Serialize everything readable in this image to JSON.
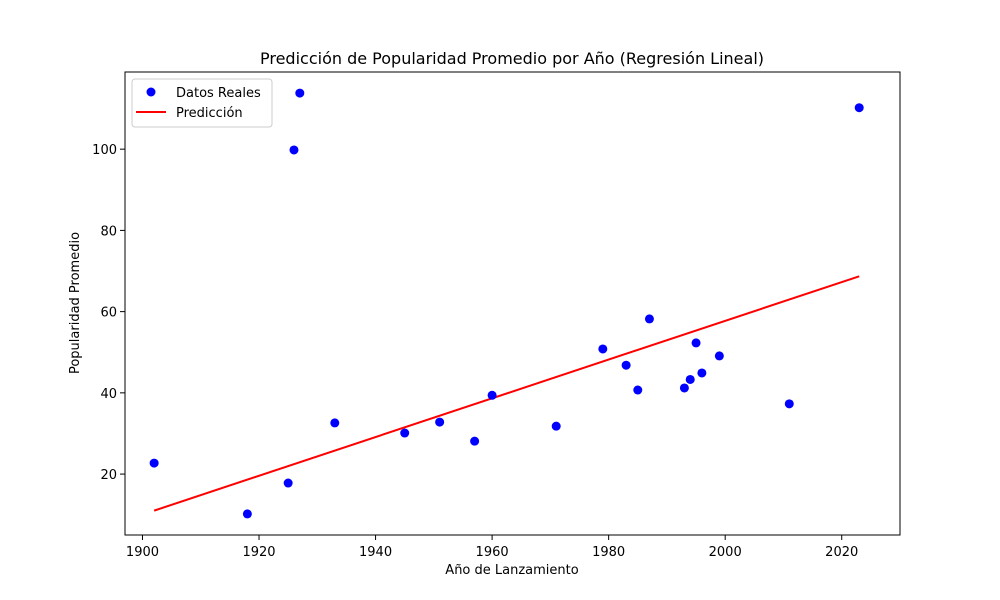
{
  "chart_data": {
    "type": "scatter",
    "title": "Predicción de Popularidad Promedio por Año (Regresión Lineal)",
    "xlabel": "Año de Lanzamiento",
    "ylabel": "Popularidad Promedio",
    "xlim": [
      1897,
      2030
    ],
    "ylim": [
      5,
      119
    ],
    "xticks": [
      1900,
      1920,
      1940,
      1960,
      1980,
      2000,
      2020
    ],
    "yticks": [
      20,
      40,
      60,
      80,
      100
    ],
    "grid": false,
    "legend_position": "top-left",
    "series": [
      {
        "name": "Datos Reales",
        "kind": "scatter",
        "color": "#0000ff",
        "points": [
          {
            "x": 1902,
            "y": 22.7
          },
          {
            "x": 1918,
            "y": 10.2
          },
          {
            "x": 1925,
            "y": 17.8
          },
          {
            "x": 1926,
            "y": 99.8
          },
          {
            "x": 1927,
            "y": 113.8
          },
          {
            "x": 1933,
            "y": 32.6
          },
          {
            "x": 1945,
            "y": 30.1
          },
          {
            "x": 1951,
            "y": 32.8
          },
          {
            "x": 1957,
            "y": 28.1
          },
          {
            "x": 1960,
            "y": 39.4
          },
          {
            "x": 1971,
            "y": 31.8
          },
          {
            "x": 1979,
            "y": 50.8
          },
          {
            "x": 1983,
            "y": 46.8
          },
          {
            "x": 1985,
            "y": 40.7
          },
          {
            "x": 1987,
            "y": 58.2
          },
          {
            "x": 1993,
            "y": 41.2
          },
          {
            "x": 1994,
            "y": 43.3
          },
          {
            "x": 1995,
            "y": 52.3
          },
          {
            "x": 1996,
            "y": 44.9
          },
          {
            "x": 1999,
            "y": 49.1
          },
          {
            "x": 2011,
            "y": 37.3
          },
          {
            "x": 2023,
            "y": 110.2
          }
        ]
      },
      {
        "name": "Predicción",
        "kind": "line",
        "color": "#ff0000",
        "points": [
          {
            "x": 1902,
            "y": 11.0
          },
          {
            "x": 2023,
            "y": 68.7
          }
        ]
      }
    ]
  }
}
